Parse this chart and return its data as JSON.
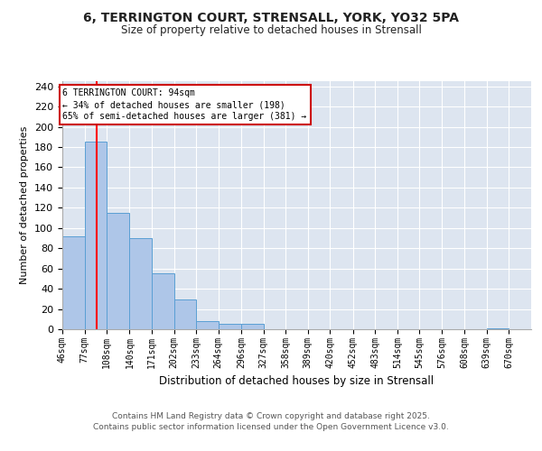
{
  "title_line1": "6, TERRINGTON COURT, STRENSALL, YORK, YO32 5PA",
  "title_line2": "Size of property relative to detached houses in Strensall",
  "xlabel": "Distribution of detached houses by size in Strensall",
  "ylabel": "Number of detached properties",
  "bar_values": [
    92,
    185,
    115,
    90,
    55,
    29,
    8,
    5,
    5,
    0,
    0,
    0,
    0,
    0,
    0,
    0,
    0,
    0,
    0,
    1,
    0
  ],
  "bin_edges": [
    46,
    77,
    108,
    140,
    171,
    202,
    233,
    264,
    296,
    327,
    358,
    389,
    420,
    452,
    483,
    514,
    545,
    576,
    608,
    639,
    670
  ],
  "bin_labels": [
    "46sqm",
    "77sqm",
    "108sqm",
    "140sqm",
    "171sqm",
    "202sqm",
    "233sqm",
    "264sqm",
    "296sqm",
    "327sqm",
    "358sqm",
    "389sqm",
    "420sqm",
    "452sqm",
    "483sqm",
    "514sqm",
    "545sqm",
    "576sqm",
    "608sqm",
    "639sqm",
    "670sqm"
  ],
  "bar_color": "#aec6e8",
  "bar_edge_color": "#5a9fd4",
  "background_color": "#dde5f0",
  "grid_color": "#ffffff",
  "red_line_x": 94,
  "annotation_text": "6 TERRINGTON COURT: 94sqm\n← 34% of detached houses are smaller (198)\n65% of semi-detached houses are larger (381) →",
  "annotation_box_color": "#ffffff",
  "annotation_box_edge_color": "#cc0000",
  "ylim": [
    0,
    245
  ],
  "yticks": [
    0,
    20,
    40,
    60,
    80,
    100,
    120,
    140,
    160,
    180,
    200,
    220,
    240
  ],
  "footer_line1": "Contains HM Land Registry data © Crown copyright and database right 2025.",
  "footer_line2": "Contains public sector information licensed under the Open Government Licence v3.0."
}
